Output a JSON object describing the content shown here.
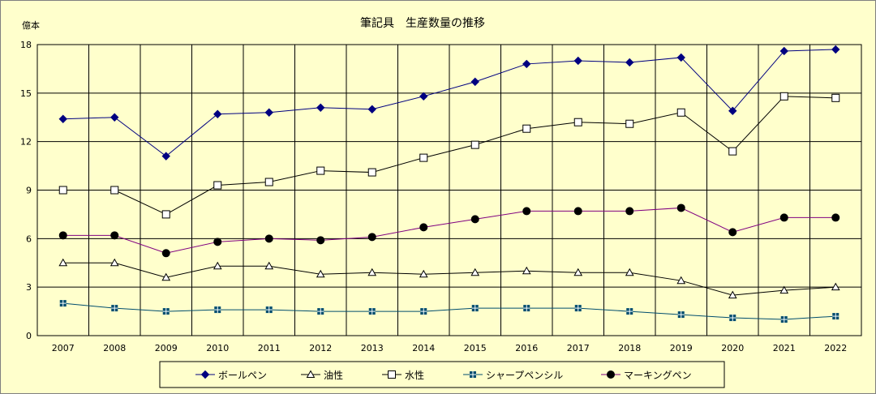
{
  "chart_data": {
    "type": "line",
    "title": "筆記具　生産数量の推移",
    "ylabel": "億本",
    "ylim": [
      0,
      18
    ],
    "yticks": [
      0,
      3,
      6,
      9,
      12,
      15,
      18
    ],
    "grid": true,
    "legend_position": "bottom",
    "categories": [
      "2007",
      "2008",
      "2009",
      "2010",
      "2011",
      "2012",
      "2013",
      "2014",
      "2015",
      "2016",
      "2017",
      "2018",
      "2019",
      "2020",
      "2021",
      "2022"
    ],
    "series": [
      {
        "name": "ボールペン",
        "color": "#000080",
        "marker": "diamond-filled",
        "values": [
          13.4,
          13.5,
          11.1,
          13.7,
          13.8,
          14.1,
          14.0,
          14.8,
          15.7,
          16.8,
          17.0,
          16.9,
          17.2,
          13.9,
          17.6,
          17.7
        ]
      },
      {
        "name": "油性",
        "color": "#000000",
        "marker": "triangle-open",
        "values": [
          4.5,
          4.5,
          3.6,
          4.3,
          4.3,
          3.8,
          3.9,
          3.8,
          3.9,
          4.0,
          3.9,
          3.9,
          3.4,
          2.5,
          2.8,
          3.0
        ]
      },
      {
        "name": "水性",
        "color": "#000000",
        "marker": "square-open",
        "values": [
          9.0,
          9.0,
          7.5,
          9.3,
          9.5,
          10.2,
          10.1,
          11.0,
          11.8,
          12.8,
          13.2,
          13.1,
          13.8,
          11.4,
          14.8,
          14.7
        ]
      },
      {
        "name": "シャープペンシル",
        "color": "#004d6e",
        "marker": "square-cross",
        "values": [
          2.0,
          1.7,
          1.5,
          1.6,
          1.6,
          1.5,
          1.5,
          1.5,
          1.7,
          1.7,
          1.7,
          1.5,
          1.3,
          1.1,
          1.0,
          1.2
        ]
      },
      {
        "name": "マーキングペン",
        "color": "#800080",
        "marker": "circle-filled",
        "values": [
          6.2,
          6.2,
          5.1,
          5.8,
          6.0,
          5.9,
          6.1,
          6.7,
          7.2,
          7.7,
          7.7,
          7.7,
          7.9,
          6.4,
          7.3,
          7.3
        ]
      }
    ]
  }
}
